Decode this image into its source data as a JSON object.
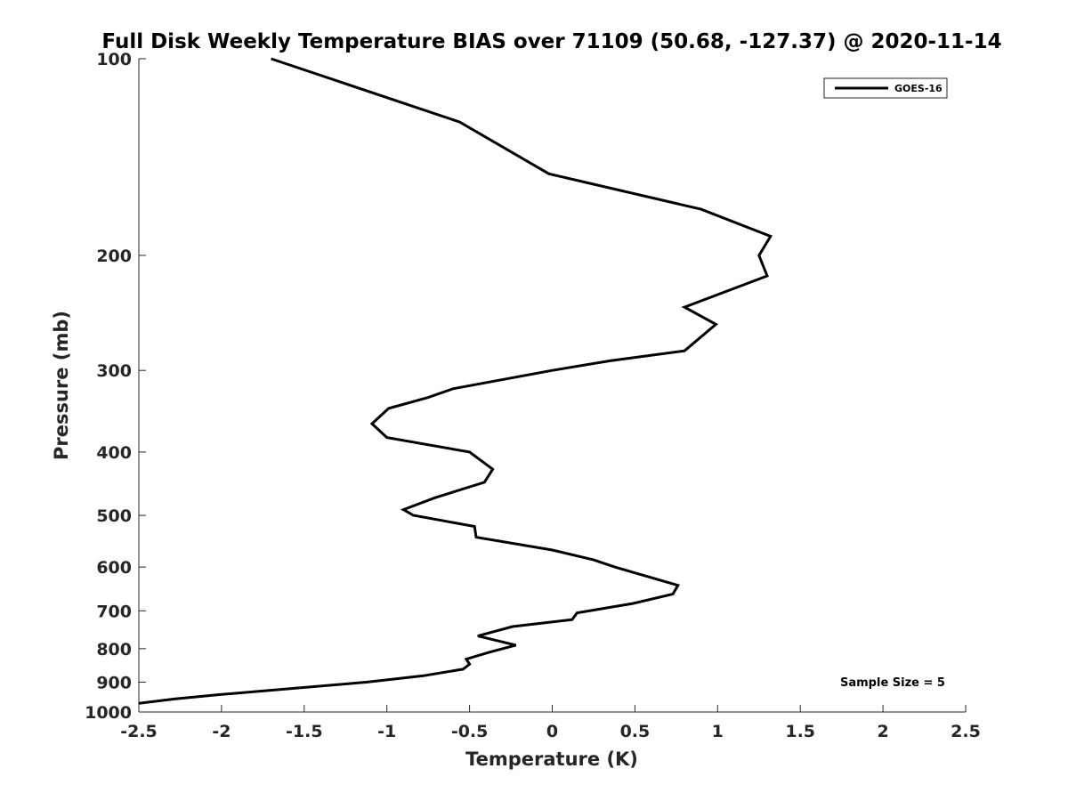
{
  "chart_data": {
    "type": "line",
    "title": "Full Disk Weekly Temperature BIAS over 71109 (50.68, -127.37) @ 2020-11-14",
    "xlabel": "Temperature (K)",
    "ylabel": "Pressure (mb)",
    "xlim": [
      -2.5,
      2.5
    ],
    "ylim": [
      100,
      1000
    ],
    "y_scale": "log",
    "y_reversed": true,
    "x_ticks": [
      -2.5,
      -2,
      -1.5,
      -1,
      -0.5,
      0,
      0.5,
      1,
      1.5,
      2,
      2.5
    ],
    "x_tick_labels": [
      "-2.5",
      "-2",
      "-1.5",
      "-1",
      "-0.5",
      "0",
      "0.5",
      "1",
      "1.5",
      "2",
      "2.5"
    ],
    "y_ticks": [
      100,
      200,
      300,
      400,
      500,
      600,
      700,
      800,
      900,
      1000
    ],
    "y_tick_labels": [
      "100",
      "200",
      "300",
      "400",
      "500",
      "600",
      "700",
      "800",
      "900",
      "1000"
    ],
    "grid": false,
    "legend_position": "top-right",
    "annotation": "Sample Size = 5",
    "series_color": "#000000",
    "series": [
      {
        "name": "GOES-16",
        "points": [
          [
            -1.7,
            100
          ],
          [
            -0.56,
            125
          ],
          [
            -0.02,
            150
          ],
          [
            0.9,
            170
          ],
          [
            1.32,
            187
          ],
          [
            1.25,
            200
          ],
          [
            1.3,
            215
          ],
          [
            0.8,
            240
          ],
          [
            0.99,
            255
          ],
          [
            0.8,
            280
          ],
          [
            0.35,
            290
          ],
          [
            0.0,
            300
          ],
          [
            -0.6,
            320
          ],
          [
            -0.75,
            330
          ],
          [
            -0.99,
            343
          ],
          [
            -1.09,
            362
          ],
          [
            -1.0,
            380
          ],
          [
            -0.5,
            400
          ],
          [
            -0.36,
            425
          ],
          [
            -0.41,
            445
          ],
          [
            -0.71,
            470
          ],
          [
            -0.9,
            490
          ],
          [
            -0.84,
            500
          ],
          [
            -0.47,
            520
          ],
          [
            -0.46,
            540
          ],
          [
            0.0,
            565
          ],
          [
            0.25,
            585
          ],
          [
            0.38,
            600
          ],
          [
            0.76,
            640
          ],
          [
            0.73,
            660
          ],
          [
            0.49,
            682
          ],
          [
            0.15,
            705
          ],
          [
            0.12,
            722
          ],
          [
            -0.24,
            740
          ],
          [
            -0.45,
            765
          ],
          [
            -0.22,
            790
          ],
          [
            -0.38,
            810
          ],
          [
            -0.52,
            830
          ],
          [
            -0.5,
            845
          ],
          [
            -0.54,
            860
          ],
          [
            -0.78,
            880
          ],
          [
            -1.12,
            900
          ],
          [
            -2.0,
            940
          ],
          [
            -2.28,
            955
          ],
          [
            -2.5,
            970
          ]
        ]
      }
    ]
  }
}
